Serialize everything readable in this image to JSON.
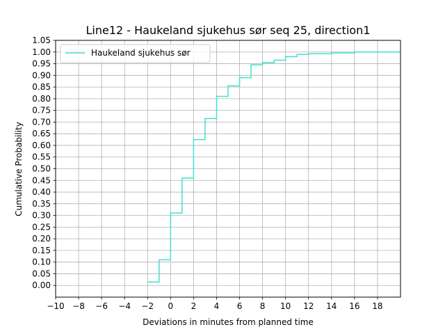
{
  "chart_data": {
    "type": "line",
    "step": "post",
    "title": "Line12 - Haukeland sjukehus sør seq 25, direction1",
    "xlabel": "Deviations in minutes from planned time",
    "ylabel": "Cumulative Probability",
    "xlim": [
      -10,
      20
    ],
    "ylim": [
      -0.05,
      1.05
    ],
    "xticks": [
      "−10",
      "−8",
      "−6",
      "−4",
      "−2",
      "0",
      "2",
      "4",
      "6",
      "8",
      "10",
      "12",
      "14",
      "16",
      "18"
    ],
    "xtick_values": [
      -10,
      -8,
      -6,
      -4,
      -2,
      0,
      2,
      4,
      6,
      8,
      10,
      12,
      14,
      16,
      18
    ],
    "yticks": [
      "0.00",
      "0.05",
      "0.10",
      "0.15",
      "0.20",
      "0.25",
      "0.30",
      "0.35",
      "0.40",
      "0.45",
      "0.50",
      "0.55",
      "0.60",
      "0.65",
      "0.70",
      "0.75",
      "0.80",
      "0.85",
      "0.90",
      "0.95",
      "1.00",
      "1.05"
    ],
    "ytick_values": [
      0,
      0.05,
      0.1,
      0.15,
      0.2,
      0.25,
      0.3,
      0.35,
      0.4,
      0.45,
      0.5,
      0.55,
      0.6,
      0.65,
      0.7,
      0.75,
      0.8,
      0.85,
      0.9,
      0.95,
      1.0,
      1.05
    ],
    "grid": true,
    "legend_position": "top-left",
    "series": [
      {
        "name": "Haukeland sjukehus sør",
        "color": "#40e0d0",
        "x": [
          -2,
          -1,
          0,
          1,
          2,
          3,
          4,
          5,
          6,
          7,
          8,
          9,
          10,
          11,
          12,
          14,
          16,
          20
        ],
        "y": [
          0.015,
          0.11,
          0.31,
          0.46,
          0.625,
          0.715,
          0.81,
          0.855,
          0.89,
          0.945,
          0.955,
          0.965,
          0.98,
          0.99,
          0.993,
          0.996,
          1.0,
          1.0
        ]
      }
    ]
  }
}
